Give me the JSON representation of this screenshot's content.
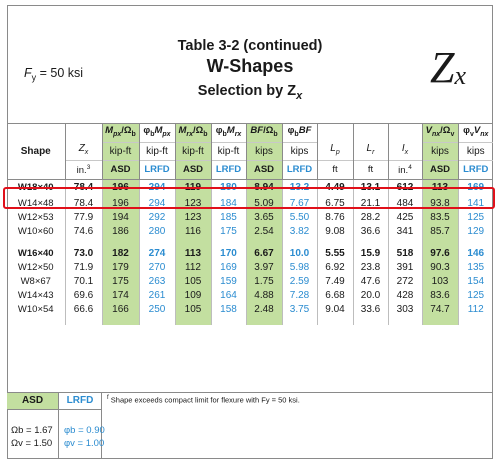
{
  "title": {
    "line1": "Table 3-2 (continued)",
    "line2": "W-Shapes",
    "line3": "Selection by Z",
    "line3_sub": "x"
  },
  "fy_label": "F",
  "fy_sub": "y",
  "fy_value": " = 50 ksi",
  "big_symbol": {
    "main": "Z",
    "sub": "x"
  },
  "headers": {
    "row1": [
      "",
      "",
      "Mpx/Ωb",
      "φbMpx",
      "Mrx/Ωb",
      "φbMrx",
      "BF/Ωb",
      "φbBF",
      "",
      "",
      "",
      "Vnx/Ωv",
      "φvVnx"
    ],
    "row2": [
      "Shape",
      "Zx",
      "kip-ft",
      "kip-ft",
      "kip-ft",
      "kip-ft",
      "kips",
      "kips",
      "Lp",
      "Lr",
      "Ix",
      "kips",
      "kips"
    ],
    "row3": [
      "",
      "in.3",
      "ASD",
      "LRFD",
      "ASD",
      "LRFD",
      "ASD",
      "LRFD",
      "ft",
      "ft",
      "in.4",
      "ASD",
      "LRFD"
    ]
  },
  "rows": [
    {
      "shape": "W18×40",
      "zx": "78.4",
      "mpx_asd": "196",
      "mpx_lrfd": "294",
      "mrx_asd": "119",
      "mrx_lrfd": "180",
      "bf_asd": "8.94",
      "bf_lrfd": "13.2",
      "lp": "4.49",
      "lr": "13.1",
      "ix": "612",
      "vnx_asd": "113",
      "vnx_lrfd": "169",
      "bold": true
    },
    {
      "shape": "W14×48",
      "zx": "78.4",
      "mpx_asd": "196",
      "mpx_lrfd": "294",
      "mrx_asd": "123",
      "mrx_lrfd": "184",
      "bf_asd": "5.09",
      "bf_lrfd": "7.67",
      "lp": "6.75",
      "lr": "21.1",
      "ix": "484",
      "vnx_asd": "93.8",
      "vnx_lrfd": "141",
      "bold": false
    },
    {
      "shape": "W12×53",
      "zx": "77.9",
      "mpx_asd": "194",
      "mpx_lrfd": "292",
      "mrx_asd": "123",
      "mrx_lrfd": "185",
      "bf_asd": "3.65",
      "bf_lrfd": "5.50",
      "lp": "8.76",
      "lr": "28.2",
      "ix": "425",
      "vnx_asd": "83.5",
      "vnx_lrfd": "125",
      "bold": false
    },
    {
      "shape": "W10×60",
      "zx": "74.6",
      "mpx_asd": "186",
      "mpx_lrfd": "280",
      "mrx_asd": "116",
      "mrx_lrfd": "175",
      "bf_asd": "2.54",
      "bf_lrfd": "3.82",
      "lp": "9.08",
      "lr": "36.6",
      "ix": "341",
      "vnx_asd": "85.7",
      "vnx_lrfd": "129",
      "bold": false
    },
    {
      "shape": "W16×40",
      "zx": "73.0",
      "mpx_asd": "182",
      "mpx_lrfd": "274",
      "mrx_asd": "113",
      "mrx_lrfd": "170",
      "bf_asd": "6.67",
      "bf_lrfd": "10.0",
      "lp": "5.55",
      "lr": "15.9",
      "ix": "518",
      "vnx_asd": "97.6",
      "vnx_lrfd": "146",
      "bold": true
    },
    {
      "shape": "W12×50",
      "zx": "71.9",
      "mpx_asd": "179",
      "mpx_lrfd": "270",
      "mrx_asd": "112",
      "mrx_lrfd": "169",
      "bf_asd": "3.97",
      "bf_lrfd": "5.98",
      "lp": "6.92",
      "lr": "23.8",
      "ix": "391",
      "vnx_asd": "90.3",
      "vnx_lrfd": "135",
      "bold": false
    },
    {
      "shape": "W8×67",
      "zx": "70.1",
      "mpx_asd": "175",
      "mpx_lrfd": "263",
      "mrx_asd": "105",
      "mrx_lrfd": "159",
      "bf_asd": "1.75",
      "bf_lrfd": "2.59",
      "lp": "7.49",
      "lr": "47.6",
      "ix": "272",
      "vnx_asd": "103",
      "vnx_lrfd": "154",
      "bold": false
    },
    {
      "shape": "W14×43",
      "zx": "69.6",
      "mpx_asd": "174",
      "mpx_lrfd": "261",
      "mrx_asd": "109",
      "mrx_lrfd": "164",
      "bf_asd": "4.88",
      "bf_lrfd": "7.28",
      "lp": "6.68",
      "lr": "20.0",
      "ix": "428",
      "vnx_asd": "83.6",
      "vnx_lrfd": "125",
      "bold": false
    },
    {
      "shape": "W10×54",
      "zx": "66.6",
      "mpx_asd": "166",
      "mpx_lrfd": "250",
      "mrx_asd": "105",
      "mrx_lrfd": "158",
      "bf_asd": "2.48",
      "bf_lrfd": "3.75",
      "lp": "9.04",
      "lr": "33.6",
      "ix": "303",
      "vnx_asd": "74.7",
      "vnx_lrfd": "112",
      "bold": false
    }
  ],
  "footer": {
    "asd": "ASD",
    "lrfd": "LRFD",
    "footnote_mark": "f",
    "footnote": "Shape exceeds compact limit for flexure with Fy = 50 ksi.",
    "omega_b": "Ωb = 1.67",
    "omega_v": "Ωv = 1.50",
    "phi_b": "φb = 0.90",
    "phi_v": "φv = 1.00"
  },
  "colors": {
    "green": "#c3dfa0",
    "blue": "#2b8cd0",
    "highlight": "#e0101a"
  }
}
